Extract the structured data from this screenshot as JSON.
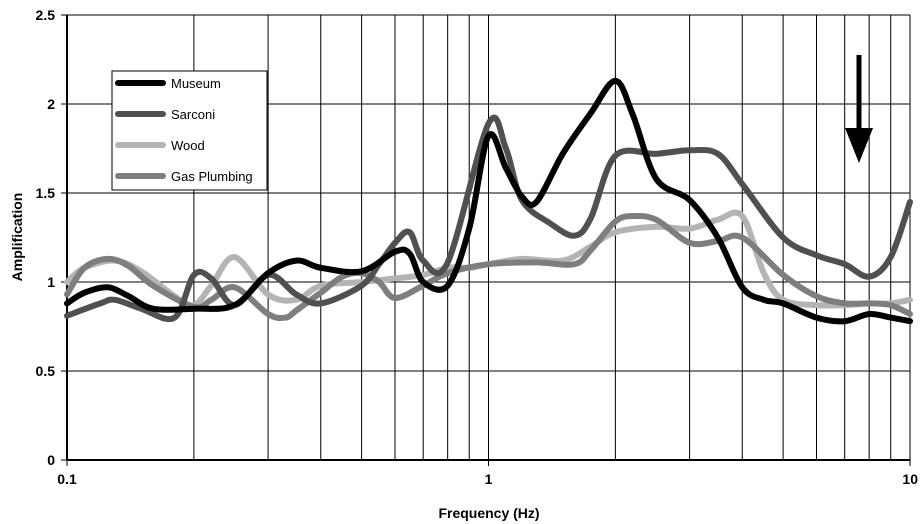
{
  "chart_data": {
    "type": "line",
    "xlabel": "Frequency (Hz)",
    "ylabel": "Amplification",
    "xscale": "log",
    "xlim": [
      0.1,
      10
    ],
    "ylim": [
      0,
      2.5
    ],
    "x_ticks": [
      0.1,
      1,
      10
    ],
    "x_tick_labels": [
      "0.1",
      "1",
      "10"
    ],
    "y_ticks": [
      0,
      0.5,
      1,
      1.5,
      2,
      2.5
    ],
    "y_tick_labels": [
      "0",
      "0.5",
      "1",
      "1.5",
      "2",
      "2.5"
    ],
    "grid": true,
    "legend_position": "top-left",
    "annotation": "down-arrow",
    "series": [
      {
        "name": "Museum",
        "color": "#000000",
        "x": [
          0.1,
          0.11,
          0.125,
          0.14,
          0.16,
          0.2,
          0.25,
          0.3,
          0.35,
          0.4,
          0.5,
          0.6,
          0.65,
          0.7,
          0.8,
          0.9,
          1.0,
          1.1,
          1.2,
          1.3,
          1.5,
          1.75,
          2.0,
          2.2,
          2.5,
          3.0,
          3.5,
          4.0,
          4.5,
          5.0,
          6.0,
          7.0,
          8.0,
          9.0,
          10.0
        ],
        "y": [
          0.88,
          0.94,
          0.97,
          0.92,
          0.85,
          0.85,
          0.87,
          1.05,
          1.12,
          1.08,
          1.06,
          1.17,
          1.16,
          1.0,
          0.98,
          1.3,
          1.82,
          1.64,
          1.48,
          1.45,
          1.72,
          1.95,
          2.13,
          1.94,
          1.58,
          1.46,
          1.25,
          0.97,
          0.9,
          0.88,
          0.8,
          0.78,
          0.82,
          0.8,
          0.78
        ]
      },
      {
        "name": "Sarconi",
        "color": "#505050",
        "x": [
          0.1,
          0.12,
          0.13,
          0.15,
          0.18,
          0.2,
          0.22,
          0.25,
          0.3,
          0.35,
          0.4,
          0.5,
          0.55,
          0.6,
          0.65,
          0.7,
          0.8,
          1.0,
          1.1,
          1.2,
          1.4,
          1.6,
          1.75,
          2.0,
          2.5,
          3.0,
          3.5,
          4.0,
          5.0,
          6.0,
          7.0,
          8.0,
          9.0,
          10.0
        ],
        "y": [
          0.81,
          0.88,
          0.9,
          0.85,
          0.8,
          1.04,
          1.02,
          0.87,
          1.04,
          0.93,
          0.88,
          0.98,
          1.1,
          1.22,
          1.28,
          1.12,
          1.11,
          1.89,
          1.75,
          1.46,
          1.33,
          1.26,
          1.36,
          1.71,
          1.72,
          1.74,
          1.72,
          1.55,
          1.25,
          1.15,
          1.1,
          1.03,
          1.14,
          1.45
        ]
      },
      {
        "name": "Wood",
        "color": "#b4b4b4",
        "x": [
          0.1,
          0.11,
          0.13,
          0.15,
          0.18,
          0.2,
          0.22,
          0.25,
          0.3,
          0.35,
          0.4,
          0.5,
          0.6,
          0.7,
          0.8,
          0.9,
          1.0,
          1.2,
          1.5,
          1.75,
          2.0,
          2.5,
          3.0,
          3.5,
          4.0,
          4.5,
          5.0,
          6.0,
          7.0,
          8.0,
          9.0,
          10.0
        ],
        "y": [
          1.0,
          1.08,
          1.12,
          1.06,
          0.92,
          0.87,
          0.98,
          1.14,
          0.93,
          0.9,
          0.98,
          1.0,
          1.02,
          1.04,
          1.08,
          1.08,
          1.1,
          1.13,
          1.12,
          1.2,
          1.28,
          1.31,
          1.3,
          1.35,
          1.37,
          1.05,
          0.9,
          0.87,
          0.87,
          0.88,
          0.88,
          0.9
        ]
      },
      {
        "name": "Gas Plumbing",
        "color": "#7e7e7e",
        "x": [
          0.1,
          0.11,
          0.125,
          0.14,
          0.16,
          0.2,
          0.22,
          0.25,
          0.3,
          0.33,
          0.35,
          0.4,
          0.45,
          0.5,
          0.55,
          0.6,
          0.7,
          0.8,
          1.0,
          1.3,
          1.6,
          1.75,
          2.0,
          2.2,
          2.5,
          3.0,
          3.5,
          4.0,
          5.0,
          6.0,
          7.0,
          8.0,
          9.0,
          10.0
        ],
        "y": [
          0.93,
          1.08,
          1.13,
          1.09,
          0.98,
          0.86,
          0.9,
          0.97,
          0.82,
          0.8,
          0.84,
          0.94,
          1.03,
          1.05,
          1.0,
          0.91,
          0.98,
          1.05,
          1.1,
          1.11,
          1.1,
          1.18,
          1.34,
          1.37,
          1.35,
          1.22,
          1.23,
          1.25,
          1.04,
          0.92,
          0.88,
          0.88,
          0.87,
          0.82
        ]
      }
    ]
  }
}
